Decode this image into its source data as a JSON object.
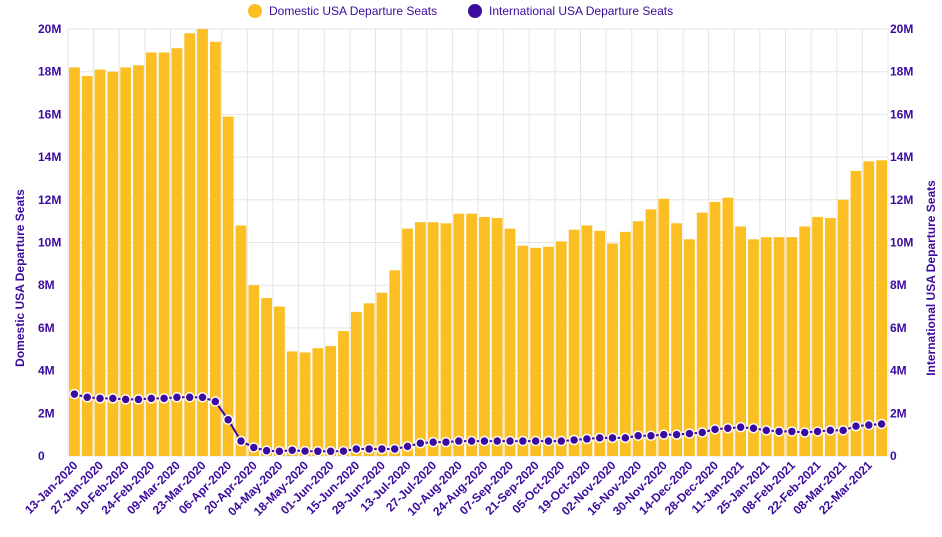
{
  "chart_data": {
    "type": "bar",
    "colors": {
      "domestic": "#FBBF24",
      "international": "#3B0A9E",
      "axis_text": "#3B0A9E",
      "grid": "#E5E5E5"
    },
    "legend_position": "top-center",
    "grid": true,
    "y_left": {
      "label": "Domestic USA Departure Seats",
      "range": [
        0,
        20000000
      ],
      "tick_labels": [
        "0",
        "2M",
        "4M",
        "6M",
        "8M",
        "10M",
        "12M",
        "14M",
        "16M",
        "18M",
        "20M"
      ]
    },
    "y_right": {
      "label": "International USA Departure Seats",
      "range": [
        0,
        20000000
      ],
      "tick_labels": [
        "0",
        "2M",
        "4M",
        "6M",
        "8M",
        "10M",
        "12M",
        "14M",
        "16M",
        "18M",
        "20M"
      ]
    },
    "x_tick_labels": [
      "13-Jan-2020",
      "27-Jan-2020",
      "10-Feb-2020",
      "24-Feb-2020",
      "09-Mar-2020",
      "23-Mar-2020",
      "06-Apr-2020",
      "20-Apr-2020",
      "04-May-2020",
      "18-May-2020",
      "01-Jun-2020",
      "15-Jun-2020",
      "29-Jun-2020",
      "13-Jul-2020",
      "27-Jul-2020",
      "10-Aug-2020",
      "24-Aug-2020",
      "07-Sep-2020",
      "21-Sep-2020",
      "05-Oct-2020",
      "19-Oct-2020",
      "02-Nov-2020",
      "16-Nov-2020",
      "30-Nov-2020",
      "14-Dec-2020",
      "28-Dec-2020",
      "11-Jan-2021",
      "25-Jan-2021",
      "08-Feb-2021",
      "22-Feb-2021",
      "08-Mar-2021",
      "22-Mar-2021"
    ],
    "series": [
      {
        "name": "Domestic USA Departure Seats",
        "kind": "bar",
        "values": [
          18200000,
          17800000,
          18100000,
          18000000,
          18200000,
          18300000,
          18900000,
          18900000,
          19100000,
          19800000,
          20000000,
          19400000,
          15900000,
          10800000,
          8000000,
          7400000,
          7000000,
          4900000,
          4850000,
          5050000,
          5150000,
          5850000,
          6750000,
          7150000,
          7650000,
          8700000,
          10650000,
          10950000,
          10950000,
          10900000,
          11350000,
          11350000,
          11200000,
          11150000,
          10650000,
          9850000,
          9750000,
          9800000,
          10050000,
          10600000,
          10800000,
          10550000,
          9950000,
          10500000,
          11000000,
          11550000,
          12050000,
          10900000,
          10150000,
          11400000,
          11900000,
          12100000,
          10750000,
          10150000,
          10250000,
          10250000,
          10250000,
          10750000,
          11200000,
          11150000,
          12000000,
          13350000,
          13800000,
          13850000
        ]
      },
      {
        "name": "International USA Departure Seats",
        "kind": "line",
        "values": [
          2900000,
          2750000,
          2700000,
          2700000,
          2650000,
          2650000,
          2700000,
          2700000,
          2750000,
          2750000,
          2750000,
          2550000,
          1700000,
          700000,
          400000,
          250000,
          220000,
          270000,
          230000,
          220000,
          220000,
          230000,
          330000,
          330000,
          330000,
          330000,
          450000,
          600000,
          650000,
          650000,
          700000,
          700000,
          700000,
          700000,
          700000,
          700000,
          700000,
          700000,
          700000,
          750000,
          800000,
          850000,
          850000,
          850000,
          950000,
          950000,
          1000000,
          1000000,
          1050000,
          1100000,
          1250000,
          1300000,
          1350000,
          1300000,
          1200000,
          1150000,
          1150000,
          1100000,
          1150000,
          1200000,
          1200000,
          1400000,
          1450000,
          1500000
        ]
      }
    ]
  }
}
